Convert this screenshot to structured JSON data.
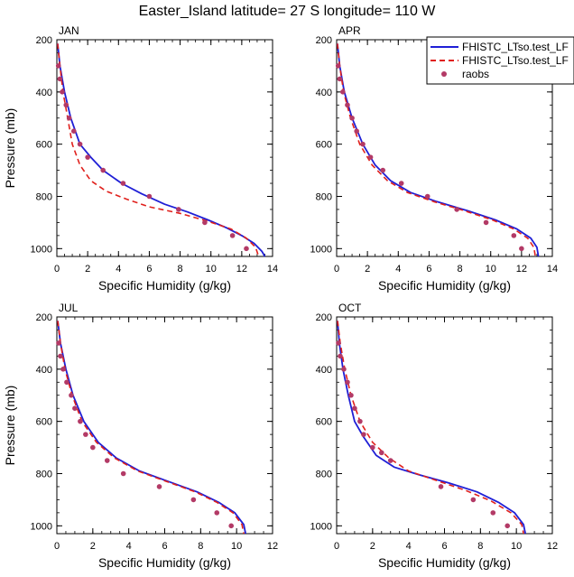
{
  "figure": {
    "title": "Easter_Island  latitude= 27 S longitude= 110 W"
  },
  "legend": {
    "items": [
      {
        "label": "FHISTC_LTso.test_LF",
        "color": "#1f1fd6",
        "style": "solid"
      },
      {
        "label": "FHISTC_LTso.test_LF",
        "color": "#e0201c",
        "style": "dashed"
      },
      {
        "label": "raobs",
        "color": "#b33a66",
        "style": "marker"
      }
    ]
  },
  "chart_data": [
    {
      "type": "line",
      "panel": "JAN",
      "xlabel": "Specific Humidity (g/kg)",
      "ylabel": "Pressure (mb)",
      "xlim": [
        0,
        14
      ],
      "xticks": [
        0,
        2,
        4,
        6,
        8,
        10,
        12,
        14
      ],
      "ylim": [
        1030,
        200
      ],
      "yticks": [
        200,
        400,
        600,
        800,
        1000
      ],
      "y_reversed": true,
      "series": [
        {
          "name": "FHISTC_LTso.test_LF",
          "x": [
            0.05,
            0.2,
            0.5,
            0.9,
            1.5,
            2.2,
            3.0,
            4.2,
            5.5,
            7.0,
            8.5,
            9.8,
            11.0,
            12.0,
            12.8,
            13.3,
            13.5
          ],
          "y": [
            215,
            300,
            400,
            500,
            600,
            650,
            700,
            750,
            790,
            830,
            860,
            890,
            920,
            950,
            980,
            1010,
            1030
          ]
        },
        {
          "name": "FHISTC_LTso.test_LF",
          "x": [
            0.05,
            0.2,
            0.4,
            0.7,
            1.0,
            1.5,
            2.2,
            3.2,
            4.5,
            6.0,
            8.0,
            9.8,
            11.3,
            12.3,
            12.9,
            13.1
          ],
          "y": [
            215,
            300,
            400,
            500,
            600,
            680,
            740,
            780,
            810,
            840,
            865,
            895,
            925,
            960,
            995,
            1030
          ]
        },
        {
          "name": "raobs",
          "x": [
            0.1,
            0.2,
            0.35,
            0.6,
            0.8,
            1.1,
            1.5,
            2.0,
            3.0,
            4.3,
            6.0,
            7.9,
            9.6,
            11.4,
            12.3
          ],
          "y": [
            300,
            350,
            400,
            450,
            500,
            550,
            600,
            650,
            700,
            750,
            800,
            850,
            900,
            950,
            1000
          ]
        }
      ]
    },
    {
      "type": "line",
      "panel": "APR",
      "xlabel": "Specific Humidity (g/kg)",
      "ylabel": "Pressure (mb)",
      "xlim": [
        0,
        14
      ],
      "xticks": [
        0,
        2,
        4,
        6,
        8,
        10,
        12,
        14
      ],
      "ylim": [
        1030,
        200
      ],
      "yticks": [
        200,
        400,
        600,
        800,
        1000
      ],
      "y_reversed": true,
      "series": [
        {
          "name": "FHISTC_LTso.test_LF",
          "x": [
            0.05,
            0.2,
            0.5,
            1.0,
            1.7,
            2.5,
            3.5,
            4.8,
            6.5,
            8.5,
            10.3,
            11.7,
            12.6,
            13.0,
            13.1
          ],
          "y": [
            215,
            300,
            400,
            500,
            600,
            680,
            740,
            785,
            820,
            855,
            890,
            925,
            960,
            995,
            1030
          ]
        },
        {
          "name": "FHISTC_LTso.test_LF",
          "x": [
            0.05,
            0.2,
            0.45,
            0.9,
            1.5,
            2.3,
            3.3,
            4.6,
            6.3,
            8.3,
            10.1,
            11.5,
            12.4,
            12.8,
            12.9
          ],
          "y": [
            215,
            300,
            400,
            500,
            600,
            680,
            740,
            785,
            820,
            855,
            890,
            925,
            960,
            995,
            1030
          ]
        },
        {
          "name": "raobs",
          "x": [
            0.1,
            0.2,
            0.4,
            0.7,
            1.0,
            1.3,
            1.7,
            2.2,
            3.0,
            4.2,
            5.9,
            7.8,
            9.7,
            11.5,
            12.0
          ],
          "y": [
            300,
            350,
            400,
            450,
            500,
            550,
            600,
            650,
            700,
            750,
            800,
            850,
            900,
            950,
            1000
          ]
        }
      ]
    },
    {
      "type": "line",
      "panel": "JUL",
      "xlabel": "Specific Humidity (g/kg)",
      "ylabel": "Pressure (mb)",
      "xlim": [
        0,
        12
      ],
      "xticks": [
        0,
        2,
        4,
        6,
        8,
        10,
        12
      ],
      "ylim": [
        1030,
        200
      ],
      "yticks": [
        200,
        400,
        600,
        800,
        1000
      ],
      "y_reversed": true,
      "series": [
        {
          "name": "FHISTC_LTso.test_LF",
          "x": [
            0.05,
            0.2,
            0.5,
            0.9,
            1.5,
            2.3,
            3.3,
            4.6,
            6.2,
            7.8,
            9.0,
            9.9,
            10.4,
            10.5
          ],
          "y": [
            215,
            300,
            400,
            500,
            600,
            680,
            740,
            790,
            830,
            870,
            910,
            950,
            995,
            1030
          ]
        },
        {
          "name": "FHISTC_LTso.test_LF",
          "x": [
            0.05,
            0.2,
            0.45,
            0.85,
            1.4,
            2.2,
            3.2,
            4.5,
            6.1,
            7.7,
            8.9,
            9.8,
            10.3,
            10.4
          ],
          "y": [
            215,
            300,
            400,
            500,
            600,
            680,
            740,
            790,
            830,
            870,
            910,
            950,
            995,
            1030
          ]
        },
        {
          "name": "raobs",
          "x": [
            0.1,
            0.2,
            0.35,
            0.55,
            0.8,
            1.0,
            1.3,
            1.6,
            2.0,
            2.8,
            3.7,
            5.7,
            7.6,
            8.9,
            9.7
          ],
          "y": [
            300,
            350,
            400,
            450,
            500,
            550,
            600,
            650,
            700,
            750,
            800,
            850,
            900,
            950,
            1000
          ]
        }
      ]
    },
    {
      "type": "line",
      "panel": "OCT",
      "xlabel": "Specific Humidity (g/kg)",
      "ylabel": "Pressure (mb)",
      "xlim": [
        0,
        12
      ],
      "xticks": [
        0,
        2,
        4,
        6,
        8,
        10,
        12
      ],
      "ylim": [
        1030,
        200
      ],
      "yticks": [
        200,
        400,
        600,
        800,
        1000
      ],
      "y_reversed": true,
      "series": [
        {
          "name": "FHISTC_LTso.test_LF",
          "x": [
            0.05,
            0.15,
            0.35,
            0.65,
            1.0,
            1.5,
            2.2,
            3.2,
            4.6,
            6.2,
            7.8,
            9.0,
            9.9,
            10.4,
            10.5
          ],
          "y": [
            215,
            300,
            400,
            500,
            600,
            660,
            730,
            775,
            805,
            835,
            870,
            910,
            950,
            995,
            1030
          ]
        },
        {
          "name": "FHISTC_LTso.test_LF",
          "x": [
            0.05,
            0.2,
            0.45,
            0.8,
            1.3,
            2.0,
            2.9,
            4.0,
            5.5,
            7.2,
            8.6,
            9.7,
            10.3,
            10.4
          ],
          "y": [
            215,
            300,
            400,
            500,
            600,
            680,
            740,
            790,
            825,
            865,
            905,
            950,
            995,
            1030
          ]
        },
        {
          "name": "raobs",
          "x": [
            0.1,
            0.2,
            0.4,
            0.6,
            0.8,
            1.0,
            1.3,
            1.5,
            2.0,
            2.5,
            3.0,
            5.8,
            7.6,
            8.7,
            9.5
          ],
          "y": [
            300,
            350,
            400,
            450,
            500,
            550,
            600,
            650,
            700,
            720,
            750,
            850,
            900,
            950,
            1000
          ]
        }
      ]
    }
  ]
}
